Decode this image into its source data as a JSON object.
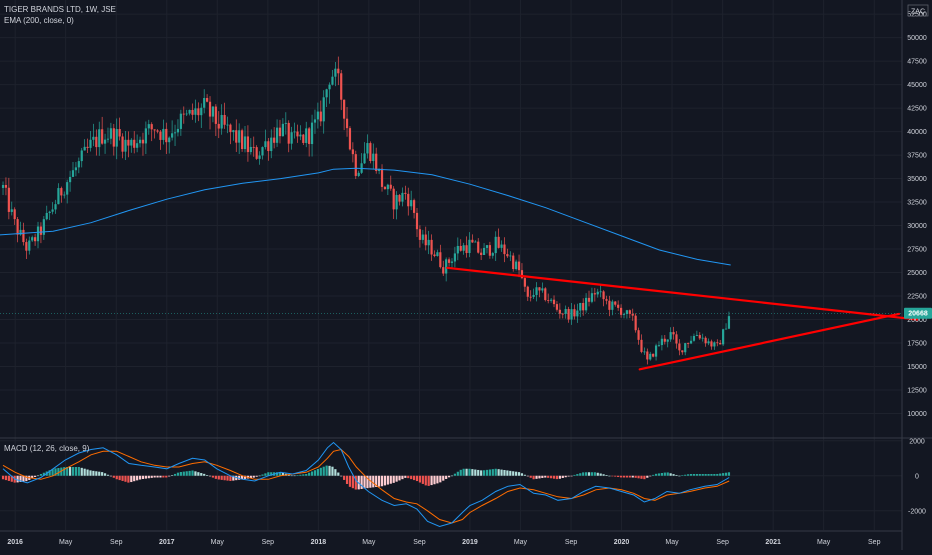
{
  "header": {
    "symbol_line": "TIGER BRANDS LTD, 1W, JSE",
    "indicator_line": "EMA (200, close, 0)",
    "currency": "ZAC"
  },
  "macd_pane": {
    "label": "MACD (12, 26, close, 9)"
  },
  "colors": {
    "background": "#131722",
    "bull": "#26a69a",
    "bear": "#ef5350",
    "ema": "#2196f3",
    "trendline": "#ff0000",
    "macd_line": "#2196f3",
    "signal_line": "#ff6d00",
    "last_price_badge": "#26a69a"
  },
  "chart_data": [
    {
      "type": "candlestick",
      "pane": "price",
      "title": "TIGER BRANDS LTD, 1W, JSE",
      "y_ticks": [
        10000,
        12500,
        15000,
        17500,
        20000,
        22500,
        25000,
        27500,
        30000,
        32500,
        35000,
        37500,
        40000,
        42500,
        45000,
        47500,
        50000,
        52500
      ],
      "y_range": [
        7500,
        54000
      ],
      "last_price": "20668",
      "x_ticks": [
        "2016",
        "May",
        "Sep",
        "2017",
        "May",
        "Sep",
        "2018",
        "May",
        "Sep",
        "2019",
        "May",
        "Sep",
        "2020",
        "May",
        "Sep",
        "2021",
        "May",
        "Sep"
      ],
      "x_tick_times": [
        2016.0,
        2016.333,
        2016.667,
        2017.0,
        2017.333,
        2017.667,
        2018.0,
        2018.333,
        2018.667,
        2019.0,
        2019.333,
        2019.667,
        2020.0,
        2020.333,
        2020.667,
        2021.0,
        2021.333,
        2021.667
      ],
      "x_range": [
        2015.9,
        2021.85
      ],
      "close_path": [
        [
          2015.92,
          34000
        ],
        [
          2016.0,
          30000
        ],
        [
          2016.08,
          27500
        ],
        [
          2016.17,
          29500
        ],
        [
          2016.25,
          32000
        ],
        [
          2016.33,
          34500
        ],
        [
          2016.42,
          36500
        ],
        [
          2016.5,
          38500
        ],
        [
          2016.58,
          39800
        ],
        [
          2016.67,
          39500
        ],
        [
          2016.75,
          38500
        ],
        [
          2016.83,
          39500
        ],
        [
          2016.92,
          40500
        ],
        [
          2017.0,
          39500
        ],
        [
          2017.08,
          41000
        ],
        [
          2017.17,
          41800
        ],
        [
          2017.25,
          42500
        ],
        [
          2017.33,
          41000
        ],
        [
          2017.42,
          39800
        ],
        [
          2017.5,
          38800
        ],
        [
          2017.58,
          37500
        ],
        [
          2017.67,
          39000
        ],
        [
          2017.75,
          40500
        ],
        [
          2017.83,
          38800
        ],
        [
          2017.92,
          39500
        ],
        [
          2018.0,
          41000
        ],
        [
          2018.04,
          43500
        ],
        [
          2018.08,
          46500
        ],
        [
          2018.13,
          45000
        ],
        [
          2018.17,
          42500
        ],
        [
          2018.21,
          38500
        ],
        [
          2018.25,
          36000
        ],
        [
          2018.33,
          38500
        ],
        [
          2018.38,
          36500
        ],
        [
          2018.42,
          34500
        ],
        [
          2018.5,
          32500
        ],
        [
          2018.58,
          33500
        ],
        [
          2018.63,
          31500
        ],
        [
          2018.67,
          28500
        ],
        [
          2018.75,
          27500
        ],
        [
          2018.83,
          25500
        ],
        [
          2018.92,
          27500
        ],
        [
          2019.0,
          28000
        ],
        [
          2019.08,
          27000
        ],
        [
          2019.17,
          28000
        ],
        [
          2019.25,
          27000
        ],
        [
          2019.33,
          25000
        ],
        [
          2019.38,
          22000
        ],
        [
          2019.42,
          23000
        ],
        [
          2019.5,
          22500
        ],
        [
          2019.58,
          21000
        ],
        [
          2019.67,
          20500
        ],
        [
          2019.75,
          21500
        ],
        [
          2019.83,
          23000
        ],
        [
          2019.92,
          21500
        ],
        [
          2020.0,
          21000
        ],
        [
          2020.08,
          19800
        ],
        [
          2020.13,
          17000
        ],
        [
          2020.17,
          15500
        ],
        [
          2020.25,
          17500
        ],
        [
          2020.33,
          18500
        ],
        [
          2020.38,
          16500
        ],
        [
          2020.42,
          17500
        ],
        [
          2020.5,
          18500
        ],
        [
          2020.58,
          17500
        ],
        [
          2020.63,
          17000
        ],
        [
          2020.67,
          18500
        ],
        [
          2020.71,
          20668
        ]
      ],
      "ema_200": [
        [
          2015.9,
          29000
        ],
        [
          2016.25,
          29400
        ],
        [
          2016.5,
          30300
        ],
        [
          2016.75,
          31600
        ],
        [
          2017.0,
          32800
        ],
        [
          2017.25,
          33800
        ],
        [
          2017.5,
          34500
        ],
        [
          2017.75,
          35000
        ],
        [
          2018.0,
          35600
        ],
        [
          2018.1,
          36000
        ],
        [
          2018.25,
          36100
        ],
        [
          2018.5,
          35900
        ],
        [
          2018.75,
          35400
        ],
        [
          2019.0,
          34400
        ],
        [
          2019.25,
          33200
        ],
        [
          2019.5,
          31900
        ],
        [
          2019.75,
          30400
        ],
        [
          2020.0,
          28900
        ],
        [
          2020.25,
          27400
        ],
        [
          2020.5,
          26400
        ],
        [
          2020.72,
          25800
        ]
      ],
      "trendlines": [
        {
          "name": "upper-trendline",
          "from": [
            2018.85,
            25500
          ],
          "to": [
            2021.95,
            20000
          ]
        },
        {
          "name": "lower-trendline",
          "from": [
            2020.12,
            14700
          ],
          "to": [
            2021.83,
            20600
          ]
        }
      ]
    },
    {
      "type": "macd",
      "pane": "indicator",
      "title": "MACD (12, 26, close, 9)",
      "y_ticks": [
        2000,
        0,
        -2000
      ],
      "y_range": [
        -3100,
        2100
      ],
      "macd_line": [
        [
          2015.92,
          400
        ],
        [
          2016.0,
          -200
        ],
        [
          2016.08,
          -400
        ],
        [
          2016.17,
          -100
        ],
        [
          2016.25,
          400
        ],
        [
          2016.33,
          900
        ],
        [
          2016.42,
          1300
        ],
        [
          2016.5,
          1500
        ],
        [
          2016.58,
          1600
        ],
        [
          2016.67,
          1200
        ],
        [
          2016.75,
          700
        ],
        [
          2016.83,
          600
        ],
        [
          2016.92,
          500
        ],
        [
          2017.0,
          400
        ],
        [
          2017.08,
          700
        ],
        [
          2017.17,
          1000
        ],
        [
          2017.25,
          900
        ],
        [
          2017.33,
          400
        ],
        [
          2017.42,
          0
        ],
        [
          2017.5,
          -200
        ],
        [
          2017.58,
          -300
        ],
        [
          2017.67,
          0
        ],
        [
          2017.75,
          200
        ],
        [
          2017.83,
          100
        ],
        [
          2017.92,
          300
        ],
        [
          2018.0,
          900
        ],
        [
          2018.06,
          1600
        ],
        [
          2018.1,
          1900
        ],
        [
          2018.15,
          1500
        ],
        [
          2018.2,
          500
        ],
        [
          2018.25,
          -300
        ],
        [
          2018.33,
          -900
        ],
        [
          2018.42,
          -1400
        ],
        [
          2018.5,
          -1700
        ],
        [
          2018.58,
          -1600
        ],
        [
          2018.65,
          -1900
        ],
        [
          2018.72,
          -2600
        ],
        [
          2018.8,
          -2900
        ],
        [
          2018.88,
          -2700
        ],
        [
          2018.95,
          -2100
        ],
        [
          2019.0,
          -1700
        ],
        [
          2019.08,
          -1400
        ],
        [
          2019.17,
          -900
        ],
        [
          2019.25,
          -600
        ],
        [
          2019.33,
          -500
        ],
        [
          2019.42,
          -1000
        ],
        [
          2019.5,
          -1100
        ],
        [
          2019.58,
          -1400
        ],
        [
          2019.67,
          -1300
        ],
        [
          2019.75,
          -900
        ],
        [
          2019.83,
          -600
        ],
        [
          2019.92,
          -700
        ],
        [
          2020.0,
          -900
        ],
        [
          2020.08,
          -1100
        ],
        [
          2020.15,
          -1500
        ],
        [
          2020.22,
          -1300
        ],
        [
          2020.3,
          -900
        ],
        [
          2020.38,
          -1000
        ],
        [
          2020.45,
          -800
        ],
        [
          2020.55,
          -600
        ],
        [
          2020.63,
          -500
        ],
        [
          2020.71,
          -100
        ]
      ],
      "signal_line": [
        [
          2015.92,
          600
        ],
        [
          2016.0,
          200
        ],
        [
          2016.08,
          -100
        ],
        [
          2016.17,
          -200
        ],
        [
          2016.25,
          0
        ],
        [
          2016.33,
          400
        ],
        [
          2016.42,
          800
        ],
        [
          2016.5,
          1200
        ],
        [
          2016.58,
          1400
        ],
        [
          2016.67,
          1400
        ],
        [
          2016.75,
          1100
        ],
        [
          2016.83,
          800
        ],
        [
          2016.92,
          600
        ],
        [
          2017.0,
          500
        ],
        [
          2017.08,
          500
        ],
        [
          2017.17,
          700
        ],
        [
          2017.25,
          800
        ],
        [
          2017.33,
          600
        ],
        [
          2017.42,
          300
        ],
        [
          2017.5,
          0
        ],
        [
          2017.58,
          -200
        ],
        [
          2017.67,
          -200
        ],
        [
          2017.75,
          0
        ],
        [
          2017.83,
          100
        ],
        [
          2017.92,
          200
        ],
        [
          2018.0,
          500
        ],
        [
          2018.06,
          1000
        ],
        [
          2018.1,
          1400
        ],
        [
          2018.15,
          1500
        ],
        [
          2018.2,
          1100
        ],
        [
          2018.25,
          500
        ],
        [
          2018.33,
          -200
        ],
        [
          2018.42,
          -800
        ],
        [
          2018.5,
          -1300
        ],
        [
          2018.58,
          -1500
        ],
        [
          2018.65,
          -1600
        ],
        [
          2018.72,
          -2000
        ],
        [
          2018.8,
          -2500
        ],
        [
          2018.88,
          -2700
        ],
        [
          2018.95,
          -2500
        ],
        [
          2019.0,
          -2100
        ],
        [
          2019.08,
          -1700
        ],
        [
          2019.17,
          -1300
        ],
        [
          2019.25,
          -900
        ],
        [
          2019.33,
          -700
        ],
        [
          2019.42,
          -800
        ],
        [
          2019.5,
          -1000
        ],
        [
          2019.58,
          -1200
        ],
        [
          2019.67,
          -1300
        ],
        [
          2019.75,
          -1100
        ],
        [
          2019.83,
          -800
        ],
        [
          2019.92,
          -700
        ],
        [
          2020.0,
          -800
        ],
        [
          2020.08,
          -1000
        ],
        [
          2020.15,
          -1300
        ],
        [
          2020.22,
          -1400
        ],
        [
          2020.3,
          -1100
        ],
        [
          2020.38,
          -1000
        ],
        [
          2020.45,
          -900
        ],
        [
          2020.55,
          -700
        ],
        [
          2020.63,
          -600
        ],
        [
          2020.71,
          -300
        ]
      ]
    }
  ]
}
